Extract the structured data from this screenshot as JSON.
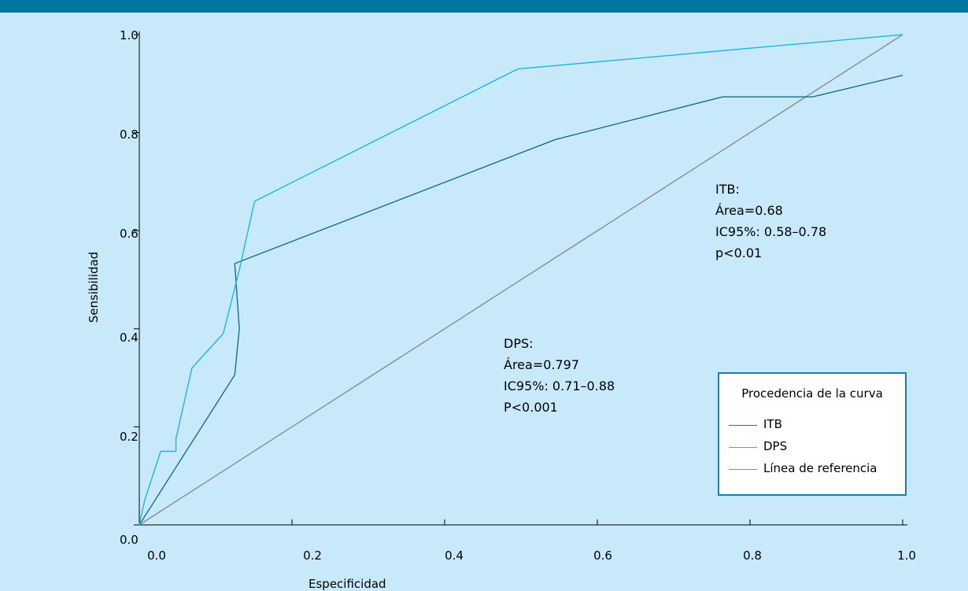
{
  "chart_data": {
    "type": "line",
    "xlabel": "Especificidad",
    "ylabel": "Sensibilidad",
    "xlim": [
      0,
      1
    ],
    "ylim": [
      0,
      1
    ],
    "x_ticks": [
      "0.0",
      "0.2",
      "0.4",
      "0.6",
      "0.8",
      "1.0"
    ],
    "y_ticks": [
      "0.0",
      "0.2",
      "0.4",
      "0.6",
      "0.8",
      "1.0"
    ],
    "grid": false,
    "legend": {
      "title": "Procedencia de la curva",
      "placement": "bottom-right",
      "entries": [
        "ITB",
        "DPS",
        "Línea de referencia"
      ]
    },
    "series": [
      {
        "name": "ITB",
        "color": "#1a6e8e",
        "x": [
          0.0,
          0.125,
          0.131,
          0.125,
          0.545,
          0.764,
          0.882,
          1.0
        ],
        "y": [
          0.0,
          0.306,
          0.4,
          0.533,
          0.786,
          0.873,
          0.873,
          0.917
        ]
      },
      {
        "name": "DPS",
        "color": "#21b5e0",
        "x": [
          0.0,
          0.007,
          0.028,
          0.048,
          0.048,
          0.069,
          0.11,
          0.131,
          0.151,
          0.496,
          1.0
        ],
        "y": [
          0.0,
          0.05,
          0.15,
          0.15,
          0.176,
          0.32,
          0.39,
          0.52,
          0.66,
          0.93,
          1.0
        ]
      },
      {
        "name": "Línea de referencia",
        "color": "#8c8c8c",
        "x": [
          0.0,
          1.0
        ],
        "y": [
          0.0,
          1.0
        ]
      }
    ],
    "annotations": [
      {
        "lines": [
          "ITB:",
          "Área=0.68",
          "IC95%: 0.58–0.78",
          "p<0.01"
        ]
      },
      {
        "lines": [
          "DPS:",
          "Área=0.797",
          "IC95%: 0.71–0.88",
          "P<0.001"
        ]
      }
    ]
  }
}
